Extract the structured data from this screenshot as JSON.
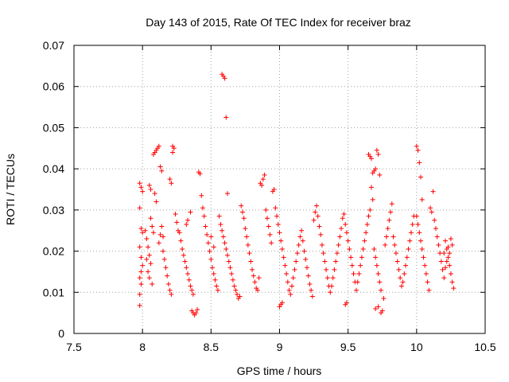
{
  "chart_data": {
    "type": "scatter",
    "title": "Day 143 of 2015, Rate Of TEC Index for receiver braz",
    "xlabel": "GPS time / hours",
    "ylabel": "ROTI / TECUs",
    "xlim": [
      7.5,
      10.5
    ],
    "ylim": [
      0,
      0.07
    ],
    "xticks": [
      7.5,
      8,
      8.5,
      9,
      9.5,
      10,
      10.5
    ],
    "xtick_labels": [
      "7.5",
      "8",
      "8.5",
      "9",
      "9.5",
      "10",
      "10.5"
    ],
    "yticks": [
      0,
      0.01,
      0.02,
      0.03,
      0.04,
      0.05,
      0.06,
      0.07
    ],
    "ytick_labels": [
      "0",
      "0.01",
      "0.02",
      "0.03",
      "0.04",
      "0.05",
      "0.06",
      "0.07"
    ],
    "grid": true,
    "marker": "+",
    "color": "#ff0000",
    "points": [
      [
        7.98,
        0.0365
      ],
      [
        7.99,
        0.0355
      ],
      [
        8.0,
        0.0345
      ],
      [
        7.98,
        0.0305
      ],
      [
        7.99,
        0.0255
      ],
      [
        8.0,
        0.0245
      ],
      [
        7.98,
        0.021
      ],
      [
        7.99,
        0.0185
      ],
      [
        8.0,
        0.0165
      ],
      [
        7.99,
        0.015
      ],
      [
        7.98,
        0.0135
      ],
      [
        7.99,
        0.012
      ],
      [
        7.98,
        0.0095
      ],
      [
        7.98,
        0.0068
      ],
      [
        8.02,
        0.025
      ],
      [
        8.03,
        0.023
      ],
      [
        8.04,
        0.021
      ],
      [
        8.05,
        0.019
      ],
      [
        8.06,
        0.017
      ],
      [
        8.04,
        0.015
      ],
      [
        8.05,
        0.0135
      ],
      [
        8.07,
        0.012
      ],
      [
        8.03,
        0.018
      ],
      [
        8.06,
        0.028
      ],
      [
        8.07,
        0.026
      ],
      [
        8.08,
        0.0245
      ],
      [
        8.1,
        0.0445
      ],
      [
        8.11,
        0.045
      ],
      [
        8.12,
        0.0455
      ],
      [
        8.09,
        0.044
      ],
      [
        8.08,
        0.0435
      ],
      [
        8.13,
        0.0405
      ],
      [
        8.14,
        0.0395
      ],
      [
        8.05,
        0.036
      ],
      [
        8.06,
        0.035
      ],
      [
        8.09,
        0.034
      ],
      [
        8.1,
        0.032
      ],
      [
        8.12,
        0.022
      ],
      [
        8.13,
        0.024
      ],
      [
        8.14,
        0.026
      ],
      [
        8.15,
        0.02
      ],
      [
        8.16,
        0.018
      ],
      [
        8.17,
        0.016
      ],
      [
        8.18,
        0.014
      ],
      [
        8.19,
        0.012
      ],
      [
        8.2,
        0.0105
      ],
      [
        8.21,
        0.0095
      ],
      [
        8.15,
        0.0235
      ],
      [
        8.2,
        0.0375
      ],
      [
        8.21,
        0.0365
      ],
      [
        8.22,
        0.0455
      ],
      [
        8.23,
        0.045
      ],
      [
        8.22,
        0.044
      ],
      [
        8.24,
        0.029
      ],
      [
        8.25,
        0.027
      ],
      [
        8.26,
        0.025
      ],
      [
        8.27,
        0.0245
      ],
      [
        8.28,
        0.0225
      ],
      [
        8.29,
        0.0205
      ],
      [
        8.3,
        0.019
      ],
      [
        8.31,
        0.0175
      ],
      [
        8.32,
        0.016
      ],
      [
        8.33,
        0.0145
      ],
      [
        8.34,
        0.013
      ],
      [
        8.35,
        0.0115
      ],
      [
        8.36,
        0.0105
      ],
      [
        8.37,
        0.0095
      ],
      [
        8.32,
        0.0265
      ],
      [
        8.33,
        0.0275
      ],
      [
        8.35,
        0.0295
      ],
      [
        8.36,
        0.0055
      ],
      [
        8.37,
        0.005
      ],
      [
        8.38,
        0.0045
      ],
      [
        8.39,
        0.005
      ],
      [
        8.4,
        0.0058
      ],
      [
        8.41,
        0.0392
      ],
      [
        8.42,
        0.0388
      ],
      [
        8.43,
        0.0335
      ],
      [
        8.44,
        0.0305
      ],
      [
        8.45,
        0.0285
      ],
      [
        8.46,
        0.026
      ],
      [
        8.47,
        0.024
      ],
      [
        8.48,
        0.022
      ],
      [
        8.49,
        0.02
      ],
      [
        8.5,
        0.018
      ],
      [
        8.51,
        0.016
      ],
      [
        8.52,
        0.0145
      ],
      [
        8.53,
        0.013
      ],
      [
        8.54,
        0.0115
      ],
      [
        8.55,
        0.0105
      ],
      [
        8.5,
        0.0235
      ],
      [
        8.52,
        0.021
      ],
      [
        8.58,
        0.063
      ],
      [
        8.59,
        0.0625
      ],
      [
        8.6,
        0.062
      ],
      [
        8.61,
        0.0525
      ],
      [
        8.62,
        0.034
      ],
      [
        8.56,
        0.0285
      ],
      [
        8.57,
        0.0265
      ],
      [
        8.58,
        0.025
      ],
      [
        8.59,
        0.0235
      ],
      [
        8.6,
        0.022
      ],
      [
        8.61,
        0.0205
      ],
      [
        8.62,
        0.019
      ],
      [
        8.63,
        0.0175
      ],
      [
        8.64,
        0.016
      ],
      [
        8.65,
        0.0145
      ],
      [
        8.66,
        0.013
      ],
      [
        8.67,
        0.0115
      ],
      [
        8.68,
        0.0105
      ],
      [
        8.69,
        0.0095
      ],
      [
        8.7,
        0.0085
      ],
      [
        8.71,
        0.009
      ],
      [
        8.72,
        0.031
      ],
      [
        8.73,
        0.0295
      ],
      [
        8.74,
        0.028
      ],
      [
        8.75,
        0.0255
      ],
      [
        8.76,
        0.0235
      ],
      [
        8.77,
        0.0215
      ],
      [
        8.78,
        0.0195
      ],
      [
        8.79,
        0.0175
      ],
      [
        8.8,
        0.0155
      ],
      [
        8.81,
        0.014
      ],
      [
        8.82,
        0.0125
      ],
      [
        8.83,
        0.011
      ],
      [
        8.84,
        0.0105
      ],
      [
        8.85,
        0.0135
      ],
      [
        8.86,
        0.0365
      ],
      [
        8.87,
        0.036
      ],
      [
        8.88,
        0.0375
      ],
      [
        8.89,
        0.0385
      ],
      [
        8.9,
        0.03
      ],
      [
        8.91,
        0.028
      ],
      [
        8.92,
        0.026
      ],
      [
        8.93,
        0.024
      ],
      [
        8.94,
        0.022
      ],
      [
        8.95,
        0.0345
      ],
      [
        8.96,
        0.035
      ],
      [
        8.97,
        0.0305
      ],
      [
        8.98,
        0.0285
      ],
      [
        8.99,
        0.0265
      ],
      [
        9.0,
        0.0245
      ],
      [
        9.01,
        0.0225
      ],
      [
        9.02,
        0.0205
      ],
      [
        9.0,
        0.0065
      ],
      [
        9.01,
        0.007
      ],
      [
        9.02,
        0.0075
      ],
      [
        9.03,
        0.0185
      ],
      [
        9.04,
        0.0165
      ],
      [
        9.05,
        0.0145
      ],
      [
        9.06,
        0.0125
      ],
      [
        9.07,
        0.0105
      ],
      [
        9.08,
        0.0095
      ],
      [
        9.09,
        0.0115
      ],
      [
        9.1,
        0.0135
      ],
      [
        9.11,
        0.0155
      ],
      [
        9.12,
        0.0175
      ],
      [
        9.13,
        0.0195
      ],
      [
        9.14,
        0.0215
      ],
      [
        9.15,
        0.0235
      ],
      [
        9.16,
        0.025
      ],
      [
        9.17,
        0.0225
      ],
      [
        9.18,
        0.02
      ],
      [
        9.19,
        0.018
      ],
      [
        9.2,
        0.016
      ],
      [
        9.21,
        0.014
      ],
      [
        9.22,
        0.012
      ],
      [
        9.23,
        0.0105
      ],
      [
        9.24,
        0.009
      ],
      [
        9.25,
        0.0275
      ],
      [
        9.26,
        0.0295
      ],
      [
        9.27,
        0.031
      ],
      [
        9.28,
        0.0285
      ],
      [
        9.29,
        0.026
      ],
      [
        9.3,
        0.024
      ],
      [
        9.31,
        0.0215
      ],
      [
        9.32,
        0.0195
      ],
      [
        9.33,
        0.0175
      ],
      [
        9.34,
        0.0155
      ],
      [
        9.35,
        0.0135
      ],
      [
        9.36,
        0.0115
      ],
      [
        9.37,
        0.01
      ],
      [
        9.38,
        0.0115
      ],
      [
        9.39,
        0.0135
      ],
      [
        9.4,
        0.0155
      ],
      [
        9.41,
        0.0175
      ],
      [
        9.42,
        0.0195
      ],
      [
        9.43,
        0.0215
      ],
      [
        9.44,
        0.0235
      ],
      [
        9.45,
        0.0255
      ],
      [
        9.46,
        0.028
      ],
      [
        9.47,
        0.029
      ],
      [
        9.48,
        0.0265
      ],
      [
        9.49,
        0.0245
      ],
      [
        9.5,
        0.0225
      ],
      [
        9.48,
        0.007
      ],
      [
        9.49,
        0.0075
      ],
      [
        9.51,
        0.0205
      ],
      [
        9.52,
        0.0185
      ],
      [
        9.53,
        0.0165
      ],
      [
        9.54,
        0.0145
      ],
      [
        9.55,
        0.0125
      ],
      [
        9.56,
        0.0105
      ],
      [
        9.57,
        0.0125
      ],
      [
        9.58,
        0.0145
      ],
      [
        9.59,
        0.0165
      ],
      [
        9.6,
        0.0185
      ],
      [
        9.61,
        0.0205
      ],
      [
        9.62,
        0.0225
      ],
      [
        9.63,
        0.0245
      ],
      [
        9.64,
        0.0265
      ],
      [
        9.65,
        0.0285
      ],
      [
        9.66,
        0.03
      ],
      [
        9.65,
        0.0435
      ],
      [
        9.66,
        0.043
      ],
      [
        9.67,
        0.0425
      ],
      [
        9.68,
        0.039
      ],
      [
        9.69,
        0.0395
      ],
      [
        9.7,
        0.04
      ],
      [
        9.71,
        0.0445
      ],
      [
        9.72,
        0.0435
      ],
      [
        9.73,
        0.0385
      ],
      [
        9.67,
        0.0355
      ],
      [
        9.68,
        0.0325
      ],
      [
        9.69,
        0.0205
      ],
      [
        9.7,
        0.0185
      ],
      [
        9.71,
        0.0165
      ],
      [
        9.72,
        0.0145
      ],
      [
        9.73,
        0.0125
      ],
      [
        9.74,
        0.0105
      ],
      [
        9.7,
        0.006
      ],
      [
        9.72,
        0.0065
      ],
      [
        9.74,
        0.005
      ],
      [
        9.75,
        0.0055
      ],
      [
        9.76,
        0.0085
      ],
      [
        9.77,
        0.0215
      ],
      [
        9.78,
        0.0235
      ],
      [
        9.79,
        0.0255
      ],
      [
        9.8,
        0.0275
      ],
      [
        9.81,
        0.0295
      ],
      [
        9.82,
        0.0315
      ],
      [
        9.83,
        0.0235
      ],
      [
        9.84,
        0.0215
      ],
      [
        9.85,
        0.0195
      ],
      [
        9.86,
        0.0175
      ],
      [
        9.87,
        0.0155
      ],
      [
        9.88,
        0.0135
      ],
      [
        9.89,
        0.0115
      ],
      [
        9.9,
        0.0125
      ],
      [
        9.91,
        0.0145
      ],
      [
        9.92,
        0.0165
      ],
      [
        9.93,
        0.0185
      ],
      [
        9.94,
        0.0205
      ],
      [
        9.95,
        0.0225
      ],
      [
        9.96,
        0.0245
      ],
      [
        9.97,
        0.0265
      ],
      [
        9.98,
        0.0285
      ],
      [
        10.0,
        0.0455
      ],
      [
        10.01,
        0.0445
      ],
      [
        10.02,
        0.0415
      ],
      [
        10.03,
        0.038
      ],
      [
        10.04,
        0.0325
      ],
      [
        10.0,
        0.0285
      ],
      [
        10.01,
        0.0265
      ],
      [
        10.02,
        0.0245
      ],
      [
        10.03,
        0.0225
      ],
      [
        10.04,
        0.0205
      ],
      [
        10.05,
        0.0185
      ],
      [
        10.06,
        0.0165
      ],
      [
        10.07,
        0.0145
      ],
      [
        10.08,
        0.0125
      ],
      [
        10.09,
        0.0105
      ],
      [
        10.1,
        0.0305
      ],
      [
        10.11,
        0.0295
      ],
      [
        10.12,
        0.0345
      ],
      [
        10.13,
        0.0275
      ],
      [
        10.14,
        0.0255
      ],
      [
        10.15,
        0.0235
      ],
      [
        10.16,
        0.0215
      ],
      [
        10.17,
        0.0195
      ],
      [
        10.18,
        0.0175
      ],
      [
        10.19,
        0.0155
      ],
      [
        10.2,
        0.0135
      ],
      [
        10.21,
        0.0225
      ],
      [
        10.22,
        0.0205
      ],
      [
        10.23,
        0.0185
      ],
      [
        10.24,
        0.0165
      ],
      [
        10.25,
        0.0145
      ],
      [
        10.26,
        0.0125
      ],
      [
        10.27,
        0.011
      ],
      [
        10.25,
        0.023
      ],
      [
        10.26,
        0.0215
      ],
      [
        10.24,
        0.0195
      ],
      [
        10.23,
        0.021
      ],
      [
        10.22,
        0.0175
      ],
      [
        10.21,
        0.016
      ],
      [
        10.2,
        0.0195
      ]
    ]
  }
}
